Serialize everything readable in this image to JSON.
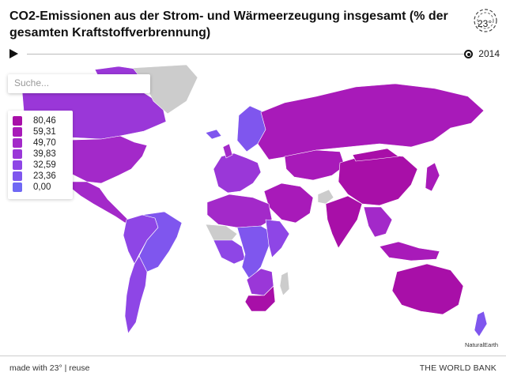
{
  "title": "CO2-Emissionen aus der Strom- und Wärmeerzeugung insgesamt (% der gesamten Kraftstoffverbrennung)",
  "logo": {
    "text": "23°",
    "icon": "23-degrees-logo-icon"
  },
  "timeline": {
    "year": "2014",
    "play_icon": "play-icon"
  },
  "search": {
    "placeholder": "Suche..."
  },
  "legend": {
    "items": [
      {
        "label": "80,46",
        "color": "#a80fa8"
      },
      {
        "label": "59,31",
        "color": "#a81ab9"
      },
      {
        "label": "49,70",
        "color": "#a329c9"
      },
      {
        "label": "39,83",
        "color": "#9a37d8"
      },
      {
        "label": "32,59",
        "color": "#8e46e6"
      },
      {
        "label": "23,36",
        "color": "#7f56ee"
      },
      {
        "label": "0,00",
        "color": "#6f68f4"
      }
    ]
  },
  "map": {
    "no_data_color": "#cccccc",
    "attribution": "NaturalEarth",
    "regions": [
      {
        "name": "Kanada",
        "color": "#9a37d8"
      },
      {
        "name": "Grönland",
        "color": "#cccccc"
      },
      {
        "name": "Vereinigte Staaten",
        "color": "#a329c9"
      },
      {
        "name": "Mexiko",
        "color": "#a329c9"
      },
      {
        "name": "Brasilien",
        "color": "#7f56ee"
      },
      {
        "name": "Argentinien",
        "color": "#8e46e6"
      },
      {
        "name": "Russland",
        "color": "#a81ab9"
      },
      {
        "name": "China",
        "color": "#a80fa8"
      },
      {
        "name": "Indien",
        "color": "#a80fa8"
      },
      {
        "name": "Australien",
        "color": "#a80fa8"
      },
      {
        "name": "Südafrika",
        "color": "#a80fa8"
      },
      {
        "name": "Afghanistan",
        "color": "#cccccc"
      }
    ]
  },
  "footer": {
    "made_with": "made with 23°",
    "separator": " | ",
    "reuse": "reuse",
    "source": "THE WORLD BANK"
  }
}
